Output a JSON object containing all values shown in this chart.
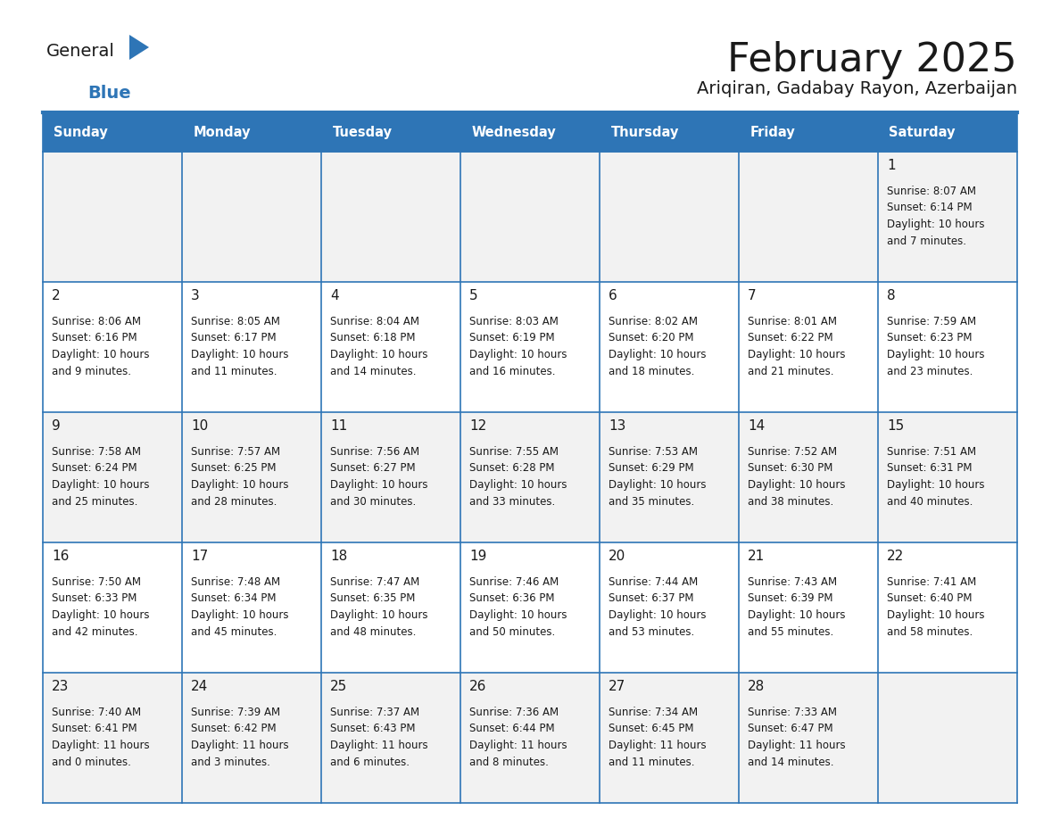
{
  "title": "February 2025",
  "subtitle": "Ariqiran, Gadabay Rayon, Azerbaijan",
  "days_of_week": [
    "Sunday",
    "Monday",
    "Tuesday",
    "Wednesday",
    "Thursday",
    "Friday",
    "Saturday"
  ],
  "header_bg": "#2e75b6",
  "header_text": "#ffffff",
  "cell_bg_white": "#ffffff",
  "cell_bg_gray": "#f2f2f2",
  "border_color": "#2e75b6",
  "title_color": "#1a1a1a",
  "subtitle_color": "#1a1a1a",
  "day_number_color": "#1a1a1a",
  "cell_text_color": "#1a1a1a",
  "logo_general_color": "#1a1a1a",
  "logo_blue_color": "#2e75b6",
  "separator_color": "#2e75b6",
  "weeks": [
    [
      null,
      null,
      null,
      null,
      null,
      null,
      {
        "day": "1",
        "sunrise": "8:07 AM",
        "sunset": "6:14 PM",
        "daylight_line1": "Daylight: 10 hours",
        "daylight_line2": "and 7 minutes."
      }
    ],
    [
      {
        "day": "2",
        "sunrise": "8:06 AM",
        "sunset": "6:16 PM",
        "daylight_line1": "Daylight: 10 hours",
        "daylight_line2": "and 9 minutes."
      },
      {
        "day": "3",
        "sunrise": "8:05 AM",
        "sunset": "6:17 PM",
        "daylight_line1": "Daylight: 10 hours",
        "daylight_line2": "and 11 minutes."
      },
      {
        "day": "4",
        "sunrise": "8:04 AM",
        "sunset": "6:18 PM",
        "daylight_line1": "Daylight: 10 hours",
        "daylight_line2": "and 14 minutes."
      },
      {
        "day": "5",
        "sunrise": "8:03 AM",
        "sunset": "6:19 PM",
        "daylight_line1": "Daylight: 10 hours",
        "daylight_line2": "and 16 minutes."
      },
      {
        "day": "6",
        "sunrise": "8:02 AM",
        "sunset": "6:20 PM",
        "daylight_line1": "Daylight: 10 hours",
        "daylight_line2": "and 18 minutes."
      },
      {
        "day": "7",
        "sunrise": "8:01 AM",
        "sunset": "6:22 PM",
        "daylight_line1": "Daylight: 10 hours",
        "daylight_line2": "and 21 minutes."
      },
      {
        "day": "8",
        "sunrise": "7:59 AM",
        "sunset": "6:23 PM",
        "daylight_line1": "Daylight: 10 hours",
        "daylight_line2": "and 23 minutes."
      }
    ],
    [
      {
        "day": "9",
        "sunrise": "7:58 AM",
        "sunset": "6:24 PM",
        "daylight_line1": "Daylight: 10 hours",
        "daylight_line2": "and 25 minutes."
      },
      {
        "day": "10",
        "sunrise": "7:57 AM",
        "sunset": "6:25 PM",
        "daylight_line1": "Daylight: 10 hours",
        "daylight_line2": "and 28 minutes."
      },
      {
        "day": "11",
        "sunrise": "7:56 AM",
        "sunset": "6:27 PM",
        "daylight_line1": "Daylight: 10 hours",
        "daylight_line2": "and 30 minutes."
      },
      {
        "day": "12",
        "sunrise": "7:55 AM",
        "sunset": "6:28 PM",
        "daylight_line1": "Daylight: 10 hours",
        "daylight_line2": "and 33 minutes."
      },
      {
        "day": "13",
        "sunrise": "7:53 AM",
        "sunset": "6:29 PM",
        "daylight_line1": "Daylight: 10 hours",
        "daylight_line2": "and 35 minutes."
      },
      {
        "day": "14",
        "sunrise": "7:52 AM",
        "sunset": "6:30 PM",
        "daylight_line1": "Daylight: 10 hours",
        "daylight_line2": "and 38 minutes."
      },
      {
        "day": "15",
        "sunrise": "7:51 AM",
        "sunset": "6:31 PM",
        "daylight_line1": "Daylight: 10 hours",
        "daylight_line2": "and 40 minutes."
      }
    ],
    [
      {
        "day": "16",
        "sunrise": "7:50 AM",
        "sunset": "6:33 PM",
        "daylight_line1": "Daylight: 10 hours",
        "daylight_line2": "and 42 minutes."
      },
      {
        "day": "17",
        "sunrise": "7:48 AM",
        "sunset": "6:34 PM",
        "daylight_line1": "Daylight: 10 hours",
        "daylight_line2": "and 45 minutes."
      },
      {
        "day": "18",
        "sunrise": "7:47 AM",
        "sunset": "6:35 PM",
        "daylight_line1": "Daylight: 10 hours",
        "daylight_line2": "and 48 minutes."
      },
      {
        "day": "19",
        "sunrise": "7:46 AM",
        "sunset": "6:36 PM",
        "daylight_line1": "Daylight: 10 hours",
        "daylight_line2": "and 50 minutes."
      },
      {
        "day": "20",
        "sunrise": "7:44 AM",
        "sunset": "6:37 PM",
        "daylight_line1": "Daylight: 10 hours",
        "daylight_line2": "and 53 minutes."
      },
      {
        "day": "21",
        "sunrise": "7:43 AM",
        "sunset": "6:39 PM",
        "daylight_line1": "Daylight: 10 hours",
        "daylight_line2": "and 55 minutes."
      },
      {
        "day": "22",
        "sunrise": "7:41 AM",
        "sunset": "6:40 PM",
        "daylight_line1": "Daylight: 10 hours",
        "daylight_line2": "and 58 minutes."
      }
    ],
    [
      {
        "day": "23",
        "sunrise": "7:40 AM",
        "sunset": "6:41 PM",
        "daylight_line1": "Daylight: 11 hours",
        "daylight_line2": "and 0 minutes."
      },
      {
        "day": "24",
        "sunrise": "7:39 AM",
        "sunset": "6:42 PM",
        "daylight_line1": "Daylight: 11 hours",
        "daylight_line2": "and 3 minutes."
      },
      {
        "day": "25",
        "sunrise": "7:37 AM",
        "sunset": "6:43 PM",
        "daylight_line1": "Daylight: 11 hours",
        "daylight_line2": "and 6 minutes."
      },
      {
        "day": "26",
        "sunrise": "7:36 AM",
        "sunset": "6:44 PM",
        "daylight_line1": "Daylight: 11 hours",
        "daylight_line2": "and 8 minutes."
      },
      {
        "day": "27",
        "sunrise": "7:34 AM",
        "sunset": "6:45 PM",
        "daylight_line1": "Daylight: 11 hours",
        "daylight_line2": "and 11 minutes."
      },
      {
        "day": "28",
        "sunrise": "7:33 AM",
        "sunset": "6:47 PM",
        "daylight_line1": "Daylight: 11 hours",
        "daylight_line2": "and 14 minutes."
      },
      null
    ]
  ]
}
